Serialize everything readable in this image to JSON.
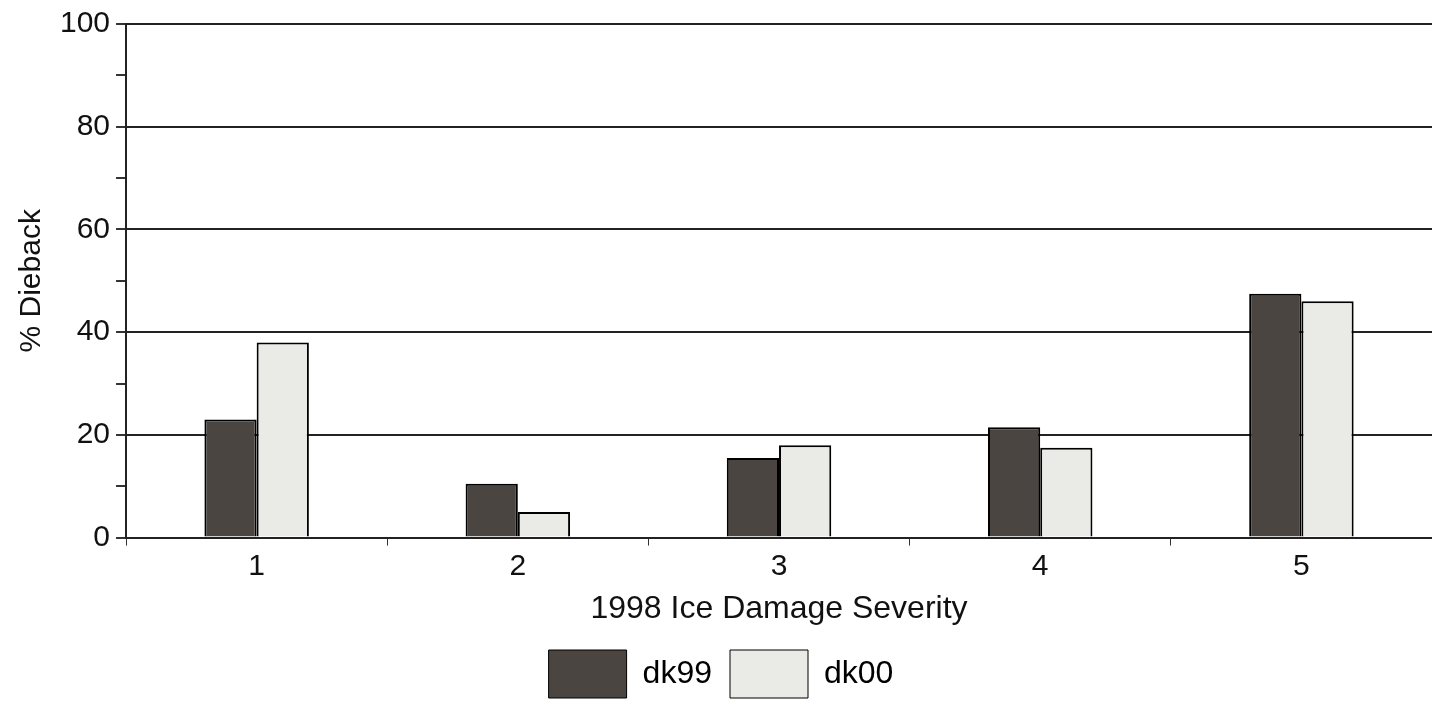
{
  "chart_data": {
    "type": "bar",
    "xlabel": "1998 Ice Damage Severity",
    "ylabel": "% Dieback",
    "categories": [
      "1",
      "2",
      "3",
      "4",
      "5"
    ],
    "series": [
      {
        "name": "dk99",
        "color": "#4a4541",
        "values": [
          23,
          10.5,
          15.5,
          21.5,
          47.5
        ]
      },
      {
        "name": "dk00",
        "color": "#eaeae6",
        "values": [
          38,
          5,
          18,
          17.5,
          46
        ]
      }
    ],
    "ylim": [
      0,
      100
    ],
    "yticks": [
      0,
      {
        "value": 10,
        "label": null
      },
      20,
      {
        "value": 30,
        "label": null
      },
      40,
      {
        "value": 50,
        "label": null
      },
      60,
      {
        "value": 70,
        "label": null
      },
      80,
      {
        "value": 90,
        "label": null
      },
      100
    ],
    "grid": "y",
    "legend": "bottom"
  }
}
